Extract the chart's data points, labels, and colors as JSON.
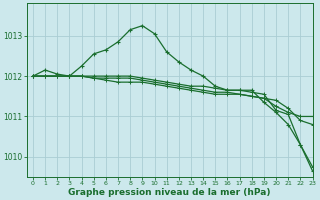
{
  "xlabel": "Graphe pression niveau de la mer (hPa)",
  "bg_color": "#cce8ec",
  "grid_color": "#aacdd4",
  "line_color": "#1a6e2e",
  "ylim": [
    1009.5,
    1013.8
  ],
  "xlim": [
    -0.5,
    23
  ],
  "yticks": [
    1010,
    1011,
    1012,
    1013
  ],
  "xticks": [
    0,
    1,
    2,
    3,
    4,
    5,
    6,
    7,
    8,
    9,
    10,
    11,
    12,
    13,
    14,
    15,
    16,
    17,
    18,
    19,
    20,
    21,
    22,
    23
  ],
  "series": [
    [
      1012.0,
      1012.15,
      1012.05,
      1012.0,
      1012.25,
      1012.55,
      1012.65,
      1012.85,
      1013.15,
      1013.25,
      1013.05,
      1012.6,
      1012.35,
      1012.15,
      1012.0,
      1011.75,
      1011.65,
      1011.65,
      1011.65,
      1011.35,
      1011.1,
      1010.8,
      1010.3,
      1009.65
    ],
    [
      1012.0,
      1012.0,
      1012.0,
      1012.0,
      1012.0,
      1011.95,
      1011.9,
      1011.85,
      1011.85,
      1011.85,
      1011.8,
      1011.75,
      1011.7,
      1011.65,
      1011.6,
      1011.55,
      1011.55,
      1011.55,
      1011.5,
      1011.45,
      1011.4,
      1011.2,
      1010.9,
      1010.8
    ],
    [
      1012.0,
      1012.0,
      1012.0,
      1012.0,
      1012.0,
      1012.0,
      1012.0,
      1012.0,
      1012.0,
      1011.95,
      1011.9,
      1011.85,
      1011.8,
      1011.75,
      1011.75,
      1011.7,
      1011.65,
      1011.65,
      1011.6,
      1011.55,
      1011.15,
      1011.05,
      1010.3,
      1009.75
    ],
    [
      1012.0,
      1012.0,
      1012.0,
      1012.0,
      1012.0,
      1011.95,
      1011.95,
      1011.95,
      1011.95,
      1011.9,
      1011.85,
      1011.8,
      1011.75,
      1011.7,
      1011.65,
      1011.6,
      1011.6,
      1011.55,
      1011.5,
      1011.45,
      1011.25,
      1011.1,
      1011.0,
      1011.0
    ]
  ],
  "marker_sizes": [
    3,
    3,
    3,
    3
  ],
  "linewidth": 0.9
}
